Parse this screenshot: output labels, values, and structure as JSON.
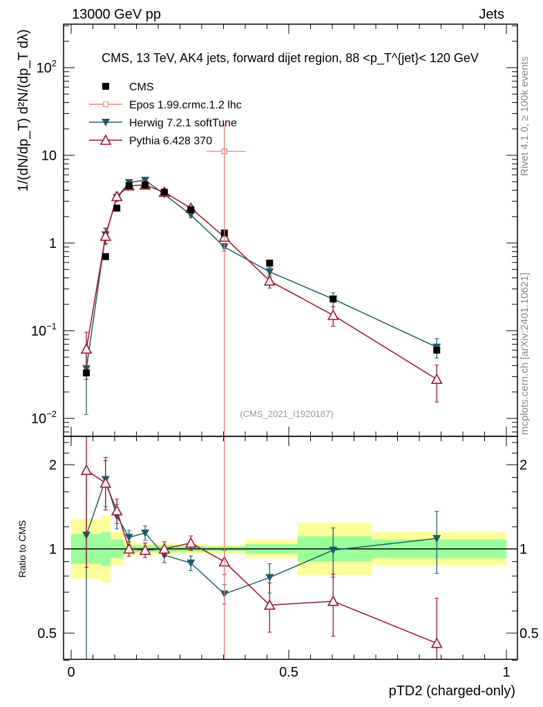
{
  "header": {
    "left": "13000 GeV pp",
    "right": "Jets"
  },
  "side_labels": {
    "rivet": "Rivet 4.1.0, ≥ 100k events",
    "mcplots": "mcplots.cern.ch [arXiv:2401.10621]"
  },
  "analysis_id": "(CMS_2021_I1920187)",
  "colors": {
    "cms": "#000000",
    "epos": "#f08080",
    "herwig": "#1d5d6a",
    "pythia": "#a0102a",
    "band_inner": "#99ff99",
    "band_outer": "#ffff99"
  },
  "chart_data": [
    {
      "type": "scatter",
      "title": "CMS, 13 TeV, AK4 jets, forward dijet region, 88 <p_T^{jet}< 120 GeV",
      "ylabel": "1/(dN/dp_T) d²N/(dp_T dλ)",
      "xlabel": "",
      "yscale": "log",
      "ylim": [
        0.0062,
        310
      ],
      "xlim": [
        -0.017,
        1.02
      ],
      "yticks": [
        {
          "v": 100,
          "label": "10",
          "sup": "2"
        },
        {
          "v": 10,
          "label": "10",
          "sup": ""
        },
        {
          "v": 1,
          "label": "1",
          "sup": ""
        },
        {
          "v": 0.1,
          "label": "10",
          "sup": "−1"
        },
        {
          "v": 0.01,
          "label": "10",
          "sup": "−2"
        }
      ],
      "legend": {
        "placement": "top-left",
        "entries": [
          "CMS",
          "Epos 1.99.crmc.1.2 lhc",
          "Herwig 7.2.1 softTune",
          "Pythia 6.428 370"
        ]
      },
      "bin_edges": [
        0,
        0.069,
        0.09,
        0.12,
        0.15,
        0.19,
        0.24,
        0.31,
        0.4,
        0.52,
        0.69,
        1.0
      ],
      "x": [
        0.035,
        0.079,
        0.105,
        0.133,
        0.17,
        0.214,
        0.275,
        0.352,
        0.456,
        0.602,
        0.84
      ],
      "series": [
        {
          "name": "CMS",
          "values": [
            0.033,
            0.7,
            2.5,
            4.5,
            4.6,
            3.8,
            2.4,
            1.3,
            0.59,
            0.23,
            0.06
          ]
        },
        {
          "name": "Herwig 7.2.1 softTune",
          "values": [
            0.037,
            1.24,
            3.3,
            4.9,
            5.2,
            3.6,
            2.1,
            0.9,
            0.47,
            0.23,
            0.065
          ],
          "rel_err": [
            0.7,
            0.2,
            0.1,
            0.05,
            0.05,
            0.05,
            0.07,
            0.1,
            0.12,
            0.18,
            0.25
          ]
        },
        {
          "name": "Pythia 6.428 370",
          "values": [
            0.062,
            1.2,
            3.4,
            4.5,
            4.6,
            3.8,
            2.5,
            1.17,
            0.37,
            0.15,
            0.028
          ],
          "rel_err": [
            0.55,
            0.2,
            0.1,
            0.05,
            0.05,
            0.05,
            0.07,
            0.1,
            0.17,
            0.25,
            0.45
          ]
        },
        {
          "name": "Epos 1.99.crmc.1.2 lhc",
          "x": [
            0.352
          ],
          "xerr": [
            [
              0.31,
              0.4
            ]
          ],
          "values": [
            11.1
          ],
          "yerr": [
            [
              0.001,
              23
            ]
          ]
        }
      ]
    },
    {
      "type": "scatter",
      "ylabel": "Ratio to CMS",
      "xlabel": "pTD2 (charged-only)",
      "yscale": "log",
      "ylim": [
        0.4,
        2.52
      ],
      "yticks": [
        {
          "v": 2,
          "label": "2"
        },
        {
          "v": 1,
          "label": "1"
        },
        {
          "v": 0.5,
          "label": "0.5"
        }
      ],
      "xticks": [
        {
          "v": 0,
          "label": "0"
        },
        {
          "v": 0.5,
          "label": "0.5"
        },
        {
          "v": 1,
          "label": "1"
        }
      ],
      "band_inner_halfwidth": [
        0.13,
        0.15,
        0.08,
        0.03,
        0.03,
        0.03,
        0.025,
        0.02,
        0.04,
        0.11,
        0.08
      ],
      "band_outer_halfwidth": [
        0.28,
        0.32,
        0.15,
        0.06,
        0.05,
        0.05,
        0.04,
        0.035,
        0.08,
        0.24,
        0.15
      ],
      "series": [
        {
          "name": "Herwig 7.2.1 softTune",
          "values": [
            1.12,
            1.77,
            1.31,
            1.1,
            1.14,
            0.95,
            0.89,
            0.69,
            0.79,
            0.99,
            1.09
          ],
          "rel_err": [
            0.7,
            0.2,
            0.1,
            0.06,
            0.06,
            0.06,
            0.06,
            0.08,
            0.12,
            0.2,
            0.25
          ]
        },
        {
          "name": "Pythia 6.428 370",
          "values": [
            1.91,
            1.72,
            1.37,
            1.0,
            0.99,
            1.0,
            1.05,
            0.9,
            0.63,
            0.65,
            0.46
          ],
          "rel_err": [
            0.55,
            0.2,
            0.1,
            0.06,
            0.06,
            0.06,
            0.06,
            0.1,
            0.2,
            0.25,
            0.45
          ]
        }
      ]
    }
  ]
}
